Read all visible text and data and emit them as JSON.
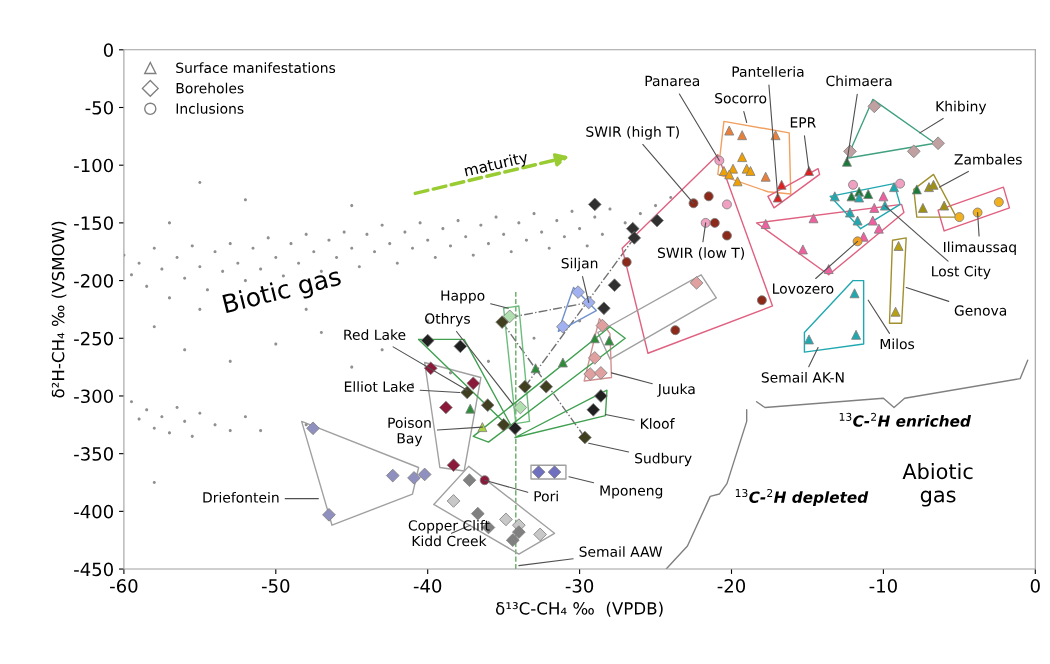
{
  "chart_data": {
    "type": "scatter",
    "xlabel": "δ¹³C-CH₄ ‰  (VPDB)",
    "ylabel": "δ²H-CH₄ ‰ (VSMOW)",
    "xlim": [
      -60,
      0
    ],
    "xticks": [
      -60,
      -50,
      -40,
      -30,
      -20,
      -10,
      0
    ],
    "ylim": [
      -450,
      0
    ],
    "yticks": [
      -450,
      -400,
      -350,
      -300,
      -250,
      -200,
      -150,
      -100,
      -50,
      0
    ],
    "grid": false,
    "legend": "top left",
    "series": [
      {
        "color": "#909090",
        "marker": "circle",
        "x": [
          -60,
          -59.5,
          -59,
          -58.5,
          -58,
          -57.5,
          -57,
          -56.5,
          -56,
          -55.5,
          -55,
          -54.5,
          -54,
          -53.5,
          -53,
          -52.5,
          -52,
          -51.5,
          -51,
          -50.5,
          -50,
          -49.5,
          -49,
          -48.5,
          -48,
          -47.5,
          -47,
          -46.5,
          -46,
          -45.5,
          -45,
          -44.5,
          -44,
          -43.5,
          -43,
          -42.5,
          -42,
          -41.5,
          -41,
          -40.5,
          -40,
          -39.5,
          -39,
          -38.5,
          -38,
          -37.5,
          -37,
          -36.5,
          -36,
          -35.5,
          -35,
          -34.5,
          -34,
          -33.5,
          -33,
          -32.5,
          -32,
          -31.5,
          -31,
          -30.5,
          -30,
          -29.5,
          -29,
          -28.5,
          -28,
          -27,
          -26,
          -25,
          -24,
          -58,
          -56,
          -53,
          -50,
          -47,
          -45,
          -43,
          -41,
          -38.5,
          -36,
          -33,
          -30,
          -55,
          -48,
          -40,
          -59.5,
          -59,
          -58.5,
          -58,
          -57.5,
          -57,
          -56.5,
          -56,
          -55.5,
          -55,
          -54,
          -53,
          -52,
          -51,
          -58,
          -48,
          -55,
          -52,
          -57,
          -45
        ],
        "values": [
          -178,
          -195,
          -185,
          -205,
          -172,
          -190,
          -215,
          -180,
          -198,
          -170,
          -188,
          -208,
          -175,
          -192,
          -168,
          -185,
          -200,
          -172,
          -190,
          -163,
          -180,
          -196,
          -168,
          -185,
          -160,
          -175,
          -192,
          -165,
          -180,
          -158,
          -172,
          -188,
          -160,
          -175,
          -152,
          -168,
          -185,
          -158,
          -172,
          -150,
          -165,
          -180,
          -155,
          -170,
          -148,
          -162,
          -178,
          -152,
          -168,
          -145,
          -160,
          -175,
          -150,
          -165,
          -142,
          -158,
          -172,
          -148,
          -162,
          -140,
          -155,
          -170,
          -145,
          -160,
          -138,
          -150,
          -142,
          -135,
          -128,
          -240,
          -260,
          -270,
          -255,
          -245,
          -275,
          -260,
          -290,
          -280,
          -270,
          -250,
          -235,
          -225,
          -225,
          -235,
          -305,
          -320,
          -312,
          -328,
          -318,
          -332,
          -310,
          -322,
          -335,
          -315,
          -325,
          -330,
          -318,
          -330,
          -375,
          -325,
          -115,
          -130,
          -150,
          -135
        ]
      },
      {
        "type": "line",
        "color": "#66aa66",
        "line_style": "dashed",
        "x": [
          -34.2,
          -34.2
        ],
        "values": [
          -450,
          -210
        ]
      },
      {
        "type": "line",
        "color": "#707070",
        "line_style": "dashdot",
        "x": [
          -35.1,
          -29.65,
          null,
          -33.6,
          -26.4,
          null,
          -34.6,
          -29.0
        ],
        "values": [
          -236,
          -336,
          null,
          -292,
          -163,
          null,
          -232,
          -218
        ]
      },
      {
        "type": "line",
        "color": "#f0a060",
        "x": [
          -20.5,
          -16.2,
          null,
          -16.2,
          -16.1,
          null,
          -16.1,
          -17.6,
          null,
          -17.6,
          -20.9,
          null,
          -20.9,
          -20.5
        ],
        "values": [
          -62,
          -72,
          null,
          -72,
          -125,
          null,
          -125,
          -123,
          null,
          -123,
          -108,
          null,
          -108,
          -62
        ]
      },
      {
        "type": "line",
        "color": "#e06080",
        "x": [
          -20.9,
          -17.3,
          null,
          -17.3,
          -25.5,
          null,
          -25.5,
          -27.2,
          null,
          -27.2,
          -20.9,
          null,
          -17.6,
          -14.3,
          null,
          -14.3,
          -14.2,
          null,
          -14.2,
          -17.2,
          null,
          -17.2,
          -17.6,
          null,
          -18.35,
          -8.8,
          null,
          -8.8,
          -8.65,
          null,
          -8.65,
          -13.6,
          null,
          -13.6,
          -18.35,
          null,
          -6.4,
          -2.1,
          null,
          -2.1,
          -1.7,
          null,
          -1.7,
          -6.0,
          null,
          -6.0,
          -6.4
        ],
        "values": [
          -91,
          -222,
          null,
          -222,
          -263,
          null,
          -263,
          -172,
          null,
          -172,
          -91,
          null,
          -127,
          -103,
          null,
          -103,
          -108,
          null,
          -108,
          -137,
          null,
          -137,
          -127,
          null,
          -150,
          -134,
          null,
          -134,
          -141,
          null,
          -141,
          -195,
          null,
          -195,
          -150,
          null,
          -139,
          -119,
          null,
          -119,
          -137,
          null,
          -137,
          -157,
          null,
          -157,
          -139
        ]
      },
      {
        "type": "line",
        "color": "#40a080",
        "x": [
          -10.7,
          -6.6,
          null,
          -6.6,
          -12.4,
          null,
          -12.4,
          -10.7
        ],
        "values": [
          -43,
          -81,
          null,
          -81,
          -94,
          null,
          -94,
          -43
        ]
      },
      {
        "type": "line",
        "color": "#20a8b0",
        "x": [
          -13.5,
          -9.3,
          null,
          -9.3,
          -8.9,
          null,
          -8.9,
          -11.5,
          null,
          -11.5,
          -13.5,
          null,
          -15.2,
          -12,
          null,
          -12,
          -11.3,
          null,
          -11.3,
          -11.3,
          null,
          -11.3,
          -15.2,
          null,
          -15.2,
          -15.2
        ],
        "values": [
          -127,
          -116,
          null,
          -116,
          -134,
          null,
          -134,
          -155,
          null,
          -155,
          -127,
          null,
          -245,
          -200,
          null,
          -200,
          -200,
          null,
          -200,
          -255,
          null,
          -255,
          -262,
          null,
          -262,
          -245
        ]
      },
      {
        "type": "line",
        "color": "#a09030",
        "x": [
          -8.0,
          -6.7,
          null,
          -6.7,
          -5.2,
          null,
          -5.2,
          -7.8,
          null,
          -7.8,
          -8.0,
          null,
          -9.4,
          -8.5,
          null,
          -8.5,
          -8.8,
          null,
          -8.8,
          -9.6,
          null,
          -9.6,
          -9.4
        ],
        "values": [
          -121,
          -108,
          null,
          -108,
          -145,
          null,
          -145,
          -145,
          null,
          -145,
          -121,
          null,
          -165,
          -163,
          null,
          -163,
          -237,
          null,
          -237,
          -237,
          null,
          -237,
          -165
        ]
      },
      {
        "type": "line",
        "color": "#a0a0a0",
        "x": [
          -48.3,
          -40.6,
          null,
          -40.6,
          -41.0,
          null,
          -41.0,
          -46.3,
          null,
          -46.3,
          -48.3,
          null,
          -39.6,
          -37.3,
          null,
          -37.3,
          -31.65,
          null,
          -31.65,
          -34.0,
          null,
          -34.0,
          -39.6,
          null,
          -33.2,
          -30.9,
          null,
          -30.9,
          -30.9,
          null,
          -30.9,
          -33.2,
          null,
          -33.2,
          -33.2,
          null,
          -40.2,
          -36.5,
          null,
          -36.5,
          -37.6,
          null,
          -37.6,
          -39.2,
          null,
          -39.2,
          -40.2,
          null,
          -28.8,
          -22,
          null,
          -22,
          -21,
          null,
          -21,
          -28,
          null,
          -28,
          -28.8
        ],
        "values": [
          -322,
          -362,
          null,
          -362,
          -385,
          null,
          -385,
          -412,
          null,
          -412,
          -322,
          null,
          -394,
          -361,
          null,
          -361,
          -419,
          null,
          -419,
          -437,
          null,
          -437,
          -394,
          null,
          -360,
          -360,
          null,
          -360,
          -372,
          null,
          -372,
          -372,
          null,
          -372,
          -360,
          null,
          -271,
          -284,
          null,
          -284,
          -365,
          null,
          -365,
          -362,
          null,
          -362,
          -271,
          null,
          -245,
          -195,
          null,
          -195,
          -215,
          null,
          -215,
          -268,
          null,
          -268,
          -245
        ]
      },
      {
        "type": "line",
        "color": "#d09090",
        "x": [
          -28.7,
          -28.0,
          null,
          -28.0,
          -27.9,
          null,
          -27.9,
          -29.7,
          null,
          -29.7,
          -28.7
        ],
        "values": [
          -233,
          -246,
          null,
          -246,
          -284,
          null,
          -284,
          -287,
          null,
          -287,
          -233
        ]
      },
      {
        "type": "line",
        "color": "#7090d0",
        "x": [
          -30.4,
          -28.9,
          null,
          -28.9,
          -31.4,
          null,
          -31.4,
          -30.4
        ],
        "values": [
          -206,
          -226,
          null,
          -226,
          -244,
          null,
          -244,
          -206
        ]
      },
      {
        "type": "line",
        "color": "#6cbc7c",
        "x": [
          -35.0,
          -34.2,
          -33.3
        ],
        "values": [
          -224,
          -324,
          -322
        ]
      },
      {
        "type": "line",
        "color": "#6cbc7c",
        "x": [
          -35.0,
          -34.0,
          -33.3
        ],
        "values": [
          -224,
          -222,
          -322
        ]
      },
      {
        "type": "line",
        "color": "#40a050",
        "x": [
          -34.25,
          -28.2,
          null,
          -28.2,
          -28.3,
          null,
          -28.3,
          -34.25,
          null,
          -40.6,
          -37.6,
          null,
          -37.6,
          -34.25,
          null,
          -34.25,
          -40.6,
          null,
          -37,
          -28,
          null,
          -28,
          -27,
          null,
          -27,
          -36,
          null,
          -36,
          -37
        ],
        "values": [
          -336,
          -295,
          null,
          -295,
          -317,
          null,
          -317,
          -336,
          null,
          -251,
          -251,
          null,
          -251,
          -332,
          null,
          -332,
          -251,
          null,
          -335,
          -240,
          null,
          -240,
          -250,
          null,
          -250,
          -340,
          null,
          -340,
          -335
        ]
      },
      {
        "type": "line",
        "color": "#808080",
        "x": [
          -18.35,
          -17.8,
          -10,
          -9.3,
          -8.6,
          -1.0,
          -0.5
        ],
        "values": [
          -305,
          -310,
          -302,
          -310,
          -302,
          -285,
          -269
        ]
      },
      {
        "type": "line",
        "color": "#808080",
        "x": [
          -24.3,
          -22.9,
          -21.4,
          -20.8,
          -20.3,
          -19.0,
          -19.0
        ],
        "values": [
          -450,
          -430,
          -387,
          -385,
          -376,
          -322,
          -312
        ]
      },
      {
        "name": "Surface manifestations",
        "color": "#808080",
        "marker": "triangle",
        "x": [
          -20.15,
          -19.3,
          -17.1,
          -19.3,
          -20.5,
          -19.9,
          -19.0,
          -19.6,
          -20.15,
          -18.75,
          -17.75,
          -16.95,
          -16.7,
          -14.9,
          -12.4,
          -12.1,
          -11.6,
          -11.0,
          -7.8,
          -13.2,
          -12.2,
          -11.7,
          -9.9,
          -9.3,
          -11.6,
          -7.0,
          -6.7,
          -7.4,
          -6.0,
          -17.75,
          -14.6,
          -15.3,
          -13.6,
          -10.6,
          -10.7,
          -10.3,
          -11.3,
          -10.0,
          -9.0,
          -9.2,
          -11.9,
          -14.9,
          -11.8,
          -29.0,
          -28.05,
          -32.9,
          -31.1,
          -37.2,
          -36.4
        ],
        "values": [
          -70,
          -74,
          -74,
          -93,
          -105,
          -103,
          -103,
          -114,
          -108,
          -105,
          -110,
          -128,
          -117,
          -105,
          -97,
          -127,
          -123,
          -125,
          -121,
          -127,
          -141,
          -148,
          -135,
          -119,
          -128,
          -119,
          -117,
          -137,
          -135,
          -151,
          -146,
          -173,
          -190,
          -137,
          -148,
          -155,
          -162,
          -127,
          -170,
          -227,
          -211,
          -251,
          -247,
          -250,
          -252,
          -276,
          -271,
          -311,
          -327
        ],
        "colors": [
          "#e8803a",
          "#e8803a",
          "#e8803a",
          "#f0a000",
          "#f0a000",
          "#f0a000",
          "#f0a000",
          "#f0a000",
          "#f0a000",
          "#f0a000",
          "#e8803a",
          "#e02020",
          "#e02020",
          "#e02020",
          "#1a7a3a",
          "#1a7a3a",
          "#1a7a3a",
          "#1a7a3a",
          "#1a7a3a",
          "#20a8b0",
          "#20a8b0",
          "#20a8b0",
          "#20a8b0",
          "#20a8b0",
          "#20a8b0",
          "#a09010",
          "#a09010",
          "#a09010",
          "#a09010",
          "#f060a0",
          "#f060a0",
          "#f060a0",
          "#f060a0",
          "#f060a0",
          "#f060a0",
          "#f060a0",
          "#f060a0",
          "#f060a0",
          "#b8a010",
          "#b8a010",
          "#20a8b0",
          "#20a8b0",
          "#20a8b0",
          "#2e8b3a",
          "#2e8b3a",
          "#2e8b3a",
          "#2e8b3a",
          "#2e8b3a",
          "#a8d040"
        ]
      },
      {
        "name": "Boreholes",
        "color": "#808080",
        "marker": "diamond",
        "x": [
          -10.6,
          -12.2,
          -8.0,
          -6.4,
          -40.0,
          -37.85,
          -28.6,
          -29.1,
          -34.25,
          -39.8,
          -37.0,
          -38.8,
          -38.3,
          -37.4,
          -36.05,
          -35.0,
          -33.6,
          -32.2,
          -29.65,
          -35.1,
          -28.5,
          -29.0,
          -29.3,
          -28.6,
          -34.6,
          -33.9,
          -32.7,
          -31.65,
          -37.25,
          -38.3,
          -36.7,
          -36.0,
          -34.4,
          -34.85,
          -34.0,
          -32.6,
          -34.0,
          -47.55,
          -42.3,
          -40.9,
          -40.2,
          -46.5,
          -30.1,
          -29.4,
          -31.1,
          -29.0,
          -26.5,
          -26.4,
          -27.7,
          -28.4,
          -24.9,
          -22.3
        ],
        "values": [
          -49,
          -88,
          -88,
          -81,
          -252,
          -257,
          -300,
          -312,
          -328,
          -276,
          -289,
          -310,
          -360,
          -297,
          -308,
          -325,
          -292,
          -292,
          -336,
          -236,
          -239,
          -267,
          -281,
          -280,
          -231,
          -310,
          -366,
          -366,
          -373,
          -391,
          -402,
          -414,
          -425,
          -407,
          -412,
          -420,
          -418,
          -328,
          -369,
          -371,
          -368,
          -403,
          -210,
          -219,
          -240,
          -134,
          -155,
          -163,
          -204,
          -224,
          -148,
          -202
        ],
        "colors": [
          "#c0a0a0",
          "#c0a0a0",
          "#c0a0a0",
          "#c0a0a0",
          "#202020",
          "#202020",
          "#202020",
          "#202020",
          "#202020",
          "#8b1a3a",
          "#8b1a3a",
          "#8b1a3a",
          "#8b1a3a",
          "#404020",
          "#404020",
          "#404020",
          "#404020",
          "#404020",
          "#404020",
          "#404020",
          "#e0a0a0",
          "#e0a0a0",
          "#e0a0a0",
          "#e0a0a0",
          "#b0e0b0",
          "#b0e0b0",
          "#7070c0",
          "#7070c0",
          "#808080",
          "#c8c8c8",
          "#808080",
          "#808080",
          "#808080",
          "#c8c8c8",
          "#c8c8c8",
          "#c8c8c8",
          "#808080",
          "#9090c0",
          "#9090c0",
          "#9090c0",
          "#9090c0",
          "#9090c0",
          "#a0b0f0",
          "#a0b0f0",
          "#a0b0f0",
          "#303030",
          "#303030",
          "#303030",
          "#303030",
          "#303030",
          "#303030",
          "#e0a0a0"
        ]
      },
      {
        "name": "Inclusions",
        "color": "#808080",
        "marker": "circle",
        "x": [
          -5.0,
          -3.8,
          -2.4,
          -20.8,
          -20.3,
          -21.7,
          -12.0,
          -8.9,
          -11.7,
          -22.5,
          -21.5,
          -21.1,
          -20.3,
          -26.9,
          -18.0,
          -23.7,
          -36.25
        ],
        "values": [
          -145,
          -141,
          -132,
          -96,
          -134,
          -150,
          -117,
          -116,
          -166,
          -133,
          -127,
          -150,
          -161,
          -184,
          -217,
          -243,
          -373
        ],
        "colors": [
          "#f0b020",
          "#f0b020",
          "#f0b020",
          "#f0a0c0",
          "#f0a0c0",
          "#f0a0c0",
          "#f0a0c0",
          "#f0a0c0",
          "#f0a020",
          "#8b2a1a",
          "#8b2a1a",
          "#8b2a1a",
          "#8b2a1a",
          "#8b2a1a",
          "#8b2a1a",
          "#8b2a1a",
          "#8b1a3a"
        ]
      }
    ],
    "annotations": [
      "maturity",
      "Biotic gas",
      {
        "text": "Panarea",
        "x": -20.8,
        "y": -96
      },
      {
        "text": "Pantelleria",
        "x": -16.95,
        "y": -128
      },
      {
        "text": "Socorro",
        "x": -19.0,
        "y": -63
      },
      {
        "text": "Chimaera",
        "x": -12.4,
        "y": -97
      },
      {
        "text": "EPR",
        "x": -14.9,
        "y": -105
      },
      {
        "text": "Khibiny",
        "x": -7.6,
        "y": -72
      },
      {
        "text": "Zambales",
        "x": -6.3,
        "y": -119
      },
      {
        "text": "SWIR (high T)",
        "x": -22.5,
        "y": -133
      },
      {
        "text": "SWIR (low T)",
        "x": -21.7,
        "y": -150
      },
      {
        "text": "Siljan",
        "x": -29.4,
        "y": -219
      },
      {
        "text": "Ilimaussaq",
        "x": -3.8,
        "y": -141
      },
      {
        "text": "Lost City",
        "x": -9.9,
        "y": -135
      },
      {
        "text": "Lovozero",
        "x": -11.7,
        "y": -166
      },
      {
        "text": "Genova",
        "x": -8.5,
        "y": -206
      },
      {
        "text": "Happo",
        "x": -34.7,
        "y": -224
      },
      {
        "text": "Othrys",
        "x": -34.4,
        "y": -307
      },
      {
        "text": "Milos",
        "x": -11.0,
        "y": -217
      },
      {
        "text": "Semail AK-N",
        "x": -14.3,
        "y": -258
      },
      {
        "text": "Juuka",
        "x": -27.9,
        "y": -280
      },
      {
        "text": "Kloof",
        "x": -28.3,
        "y": -316
      },
      {
        "text": "Sudbury",
        "x": -29.4,
        "y": -341
      },
      {
        "text": "Mponeng",
        "x": -30.7,
        "y": -370
      },
      {
        "text": "Pori",
        "x": -36.25,
        "y": -373
      },
      {
        "text": "Semail AAW",
        "x": -34.0,
        "y": -447
      },
      {
        "text": "Red Lake",
        "x": -37.4,
        "y": -295
      },
      {
        "text": "Elliot Lake",
        "x": -37.9,
        "y": -297
      },
      {
        "text": "Poison\nBay",
        "x": -36.4,
        "y": -327
      },
      {
        "text": "Driefontein",
        "x": -47.2,
        "y": -389
      },
      {
        "text": "Copper Clift\nKidd Creek",
        "x": -37.2,
        "y": -412
      },
      "$^{13}$C-$^{2}$H enriched",
      "$^{13}$C-$^{2}$H depleted",
      "Abiotic\ngas"
    ]
  }
}
